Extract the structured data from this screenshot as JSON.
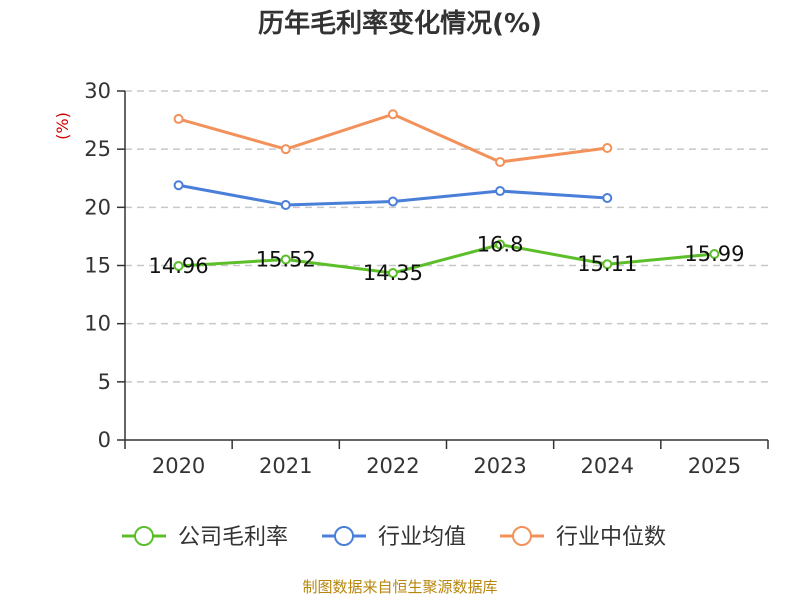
{
  "chart_data": {
    "type": "line",
    "title": "历年毛利率变化情况(%)",
    "ylabel": "(%)",
    "xlabel": "",
    "categories": [
      "2020",
      "2021",
      "2022",
      "2023",
      "2024",
      "2025"
    ],
    "ylim": [
      0,
      30
    ],
    "yticks": [
      0,
      5,
      10,
      15,
      20,
      25,
      30
    ],
    "grid": true,
    "legend_position": "bottom",
    "series": [
      {
        "name": "公司毛利率",
        "color": "#5cbf2a",
        "values": [
          14.96,
          15.52,
          14.35,
          16.8,
          15.11,
          15.99
        ],
        "labels": [
          "14.96",
          "15.52",
          "14.35",
          "16.8",
          "15.11",
          "15.99"
        ]
      },
      {
        "name": "行业均值",
        "color": "#4a7fd9",
        "values": [
          21.9,
          20.2,
          20.5,
          21.4,
          20.8,
          null
        ]
      },
      {
        "name": "行业中位数",
        "color": "#f2925a",
        "values": [
          27.6,
          25.0,
          28.0,
          23.9,
          25.1,
          null
        ]
      }
    ],
    "source": "制图数据来自恒生聚源数据库"
  }
}
